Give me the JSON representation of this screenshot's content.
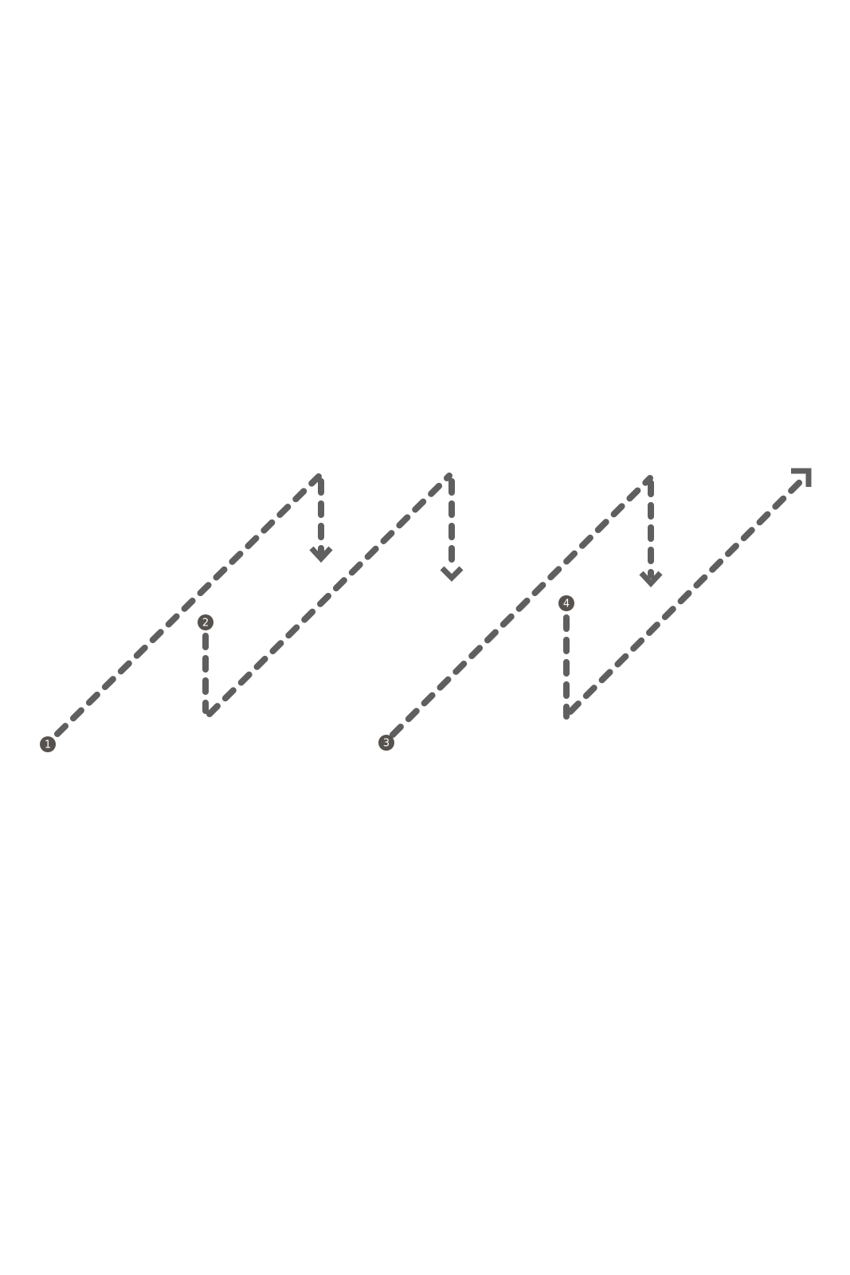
{
  "diagram": {
    "stroke_color": "#5f5f5f",
    "marker_fill": "#56534f",
    "marker_text_color": "#ffffff",
    "markers": [
      {
        "label": "1"
      },
      {
        "label": "2"
      },
      {
        "label": "3"
      },
      {
        "label": "4"
      }
    ]
  }
}
